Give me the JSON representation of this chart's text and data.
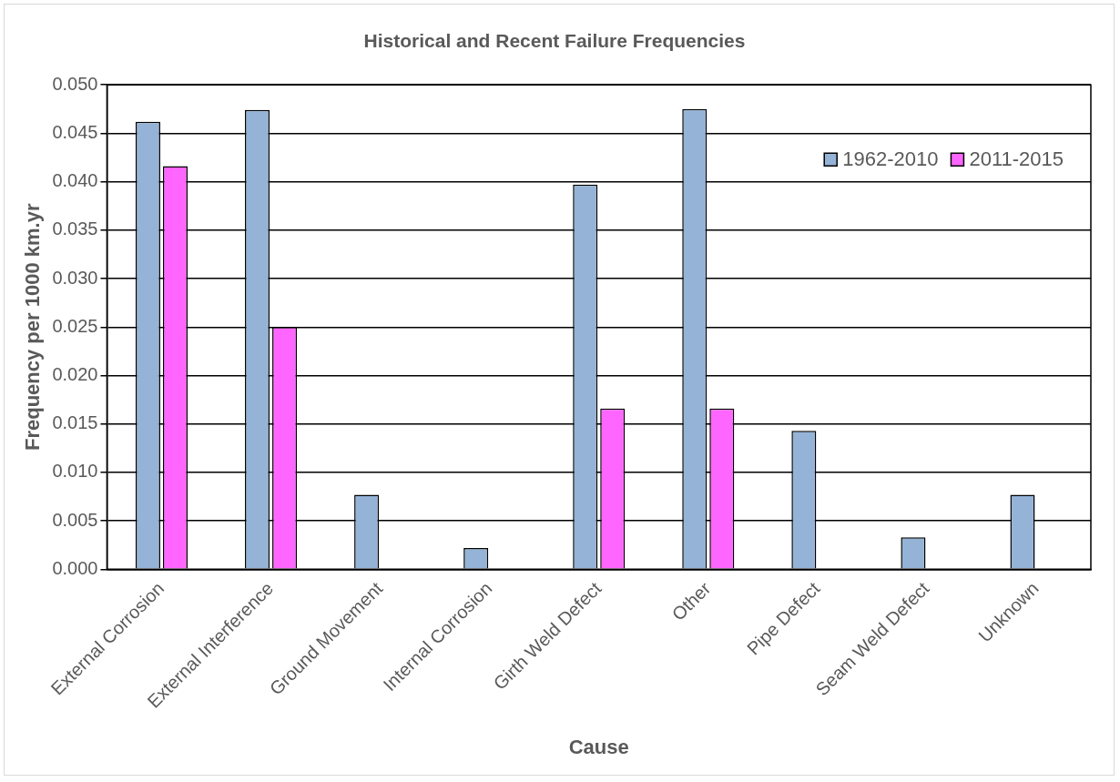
{
  "chart_data": {
    "type": "bar",
    "title": "Historical and Recent Failure Frequencies",
    "xlabel": "Cause",
    "ylabel": "Frequency per 1000 km.yr",
    "categories": [
      "External Corrosion",
      "External Interference",
      "Ground Movement",
      "Internal Corrosion",
      "Girth Weld Defect",
      "Other",
      "Pipe Defect",
      "Seam Weld Defect",
      "Unknown"
    ],
    "series": [
      {
        "name": "1962-2010",
        "color": "#95b3d7",
        "values": [
          0.0462,
          0.0474,
          0.0077,
          0.0022,
          0.0397,
          0.0475,
          0.0143,
          0.0033,
          0.0077
        ]
      },
      {
        "name": "2011-2015",
        "color": "#ff66ff",
        "values": [
          0.0416,
          0.025,
          null,
          null,
          0.0166,
          0.0166,
          null,
          null,
          null
        ]
      }
    ],
    "ylim": [
      0,
      0.05
    ],
    "yticks": [
      {
        "value": 0,
        "label": "0.000"
      },
      {
        "value": 0.005,
        "label": "0.005"
      },
      {
        "value": 0.01,
        "label": "0.010"
      },
      {
        "value": 0.015,
        "label": "0.015"
      },
      {
        "value": 0.02,
        "label": "0.020"
      },
      {
        "value": 0.025,
        "label": "0.025"
      },
      {
        "value": 0.03,
        "label": "0.030"
      },
      {
        "value": 0.035,
        "label": "0.035"
      },
      {
        "value": 0.04,
        "label": "0.040"
      },
      {
        "value": 0.045,
        "label": "0.045"
      },
      {
        "value": 0.05,
        "label": "0.050"
      }
    ],
    "grid": "y",
    "legend": "top right"
  }
}
